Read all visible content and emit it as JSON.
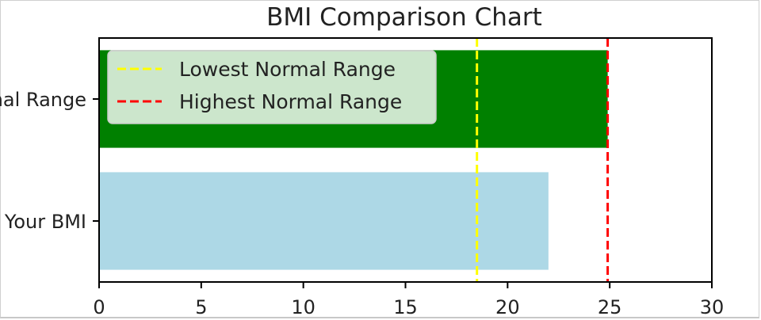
{
  "chart_data": {
    "type": "bar",
    "orientation": "horizontal",
    "title": "BMI Comparison Chart",
    "xlabel": "",
    "ylabel": "",
    "categories": [
      "Your BMI",
      "Normal Range"
    ],
    "bars": [
      {
        "category": "Your BMI",
        "start": 0,
        "end": 22,
        "color": "#add8e6"
      },
      {
        "category": "Normal Range",
        "start": 0,
        "end": 24.9,
        "color": "#008000"
      }
    ],
    "reference_lines": [
      {
        "name": "Lowest Normal Range",
        "x": 18.5,
        "color": "#ffff00",
        "style": "dashed"
      },
      {
        "name": "Highest Normal Range",
        "x": 24.9,
        "color": "#ff0000",
        "style": "dashed"
      }
    ],
    "xlim": [
      0,
      30
    ],
    "xticks": [
      "0",
      "5",
      "10",
      "15",
      "20",
      "25",
      "30"
    ],
    "grid": false,
    "legend_position": "upper-left"
  }
}
